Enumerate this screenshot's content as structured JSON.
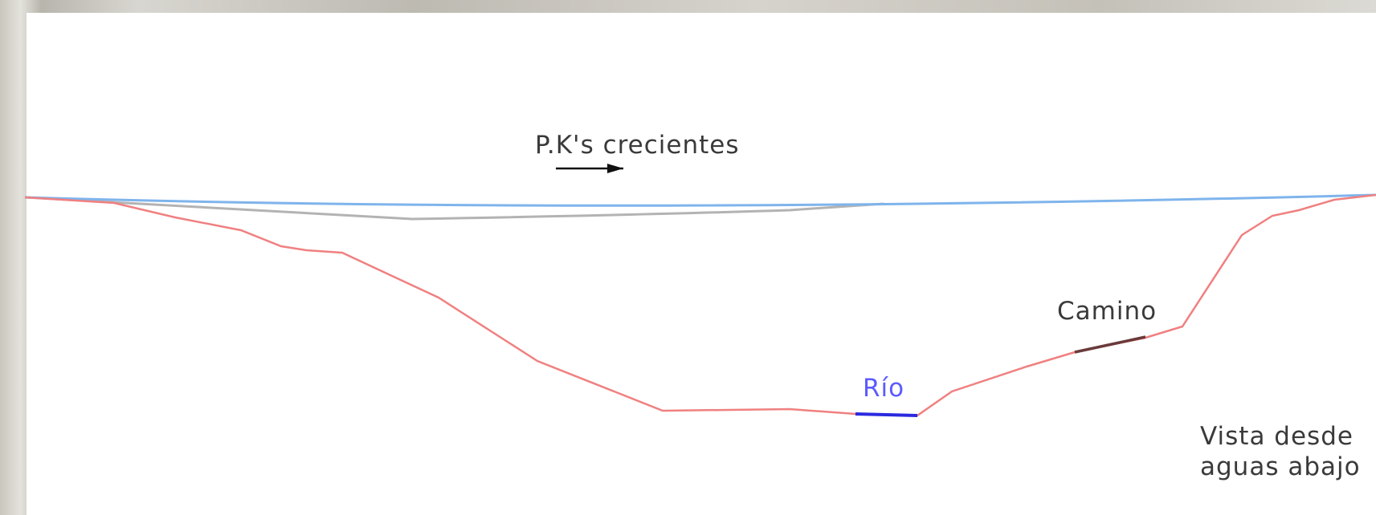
{
  "labels": {
    "direction": "P.K's crecientes",
    "road": "Camino",
    "river": "Río",
    "view_line1": "Vista desde",
    "view_line2": "aguas abajo"
  }
}
